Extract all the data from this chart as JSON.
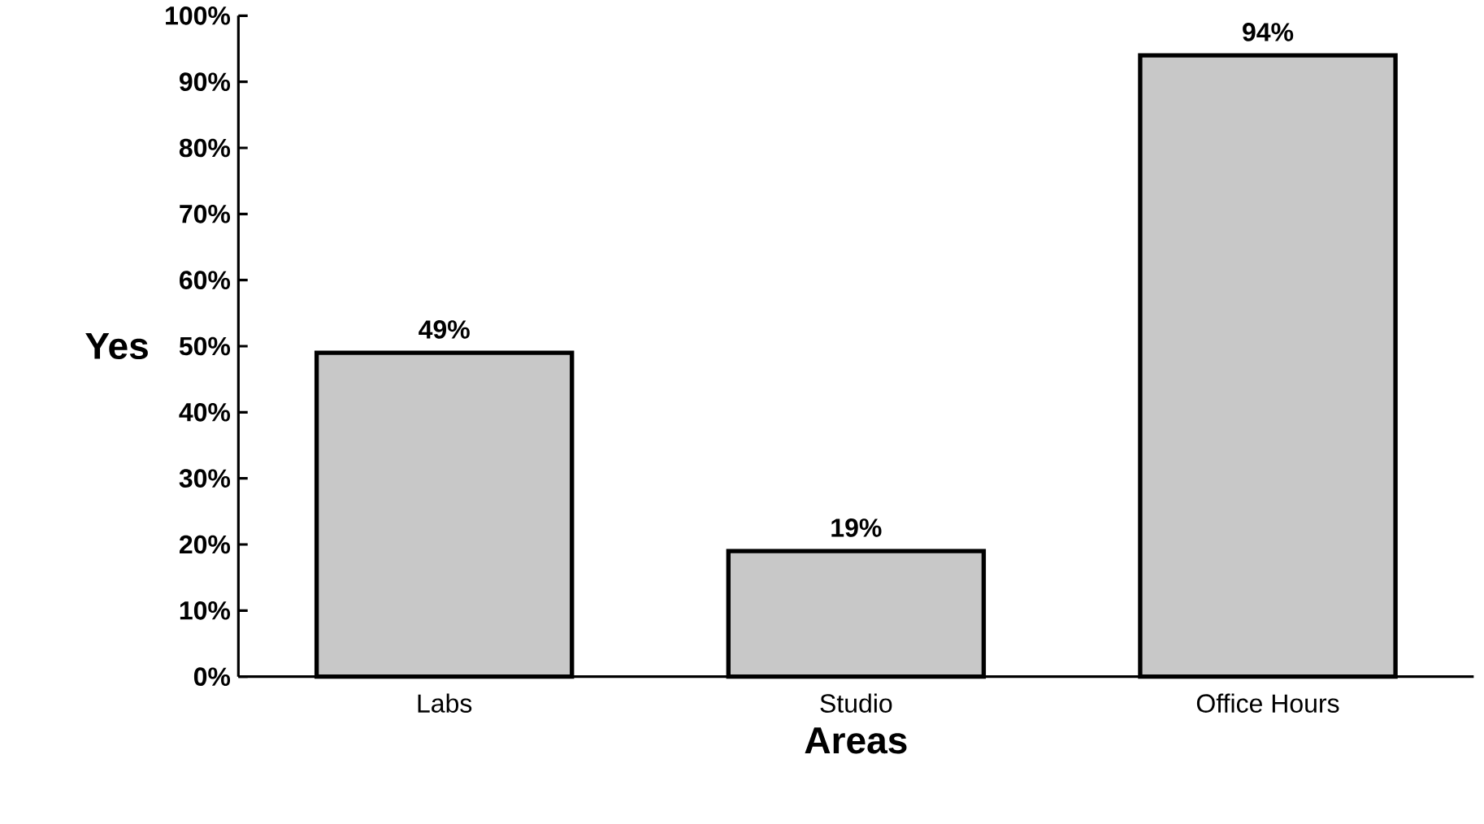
{
  "chart_data": {
    "type": "bar",
    "xlabel": "Areas",
    "ylabel": "Yes",
    "categories": [
      "Labs",
      "Studio",
      "Office Hours"
    ],
    "values": [
      49,
      19,
      94
    ],
    "value_labels": [
      "49%",
      "19%",
      "94%"
    ],
    "color": "#c8c8c8",
    "ylim": [
      0,
      100
    ],
    "yticks": [
      {
        "value": 0,
        "label": "0%"
      },
      {
        "value": 10,
        "label": "10%"
      },
      {
        "value": 20,
        "label": "20%"
      },
      {
        "value": 30,
        "label": "30%"
      },
      {
        "value": 40,
        "label": "40%"
      },
      {
        "value": 50,
        "label": "50%"
      },
      {
        "value": 60,
        "label": "60%"
      },
      {
        "value": 70,
        "label": "70%"
      },
      {
        "value": 80,
        "label": "80%"
      },
      {
        "value": 90,
        "label": "90%"
      },
      {
        "value": 100,
        "label": "100%"
      }
    ],
    "grid": false
  }
}
